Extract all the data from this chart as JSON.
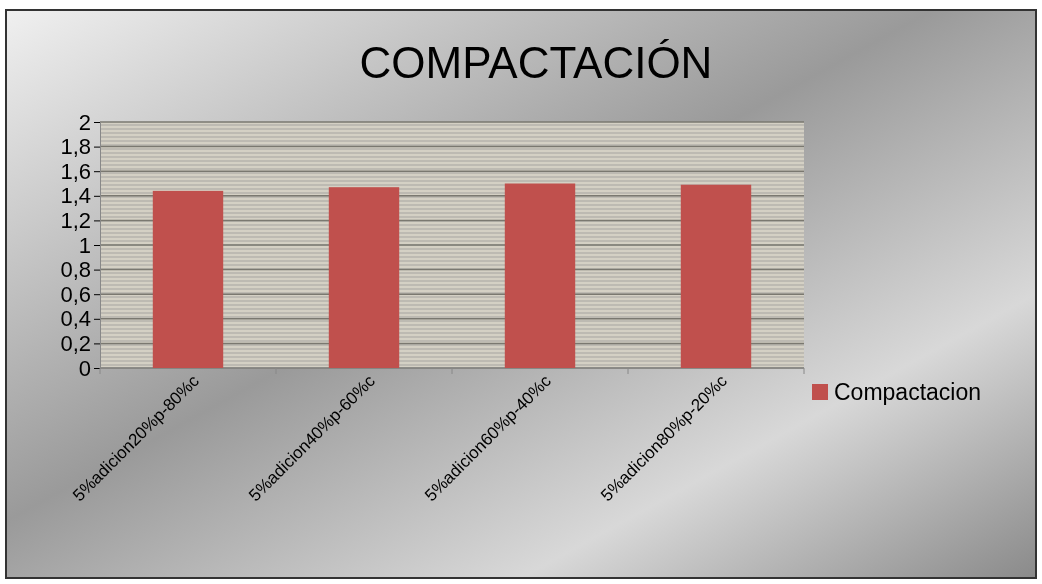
{
  "chart_data": {
    "type": "bar",
    "title": "COMPACTACIÓN",
    "categories": [
      "5%adicion20%p-80%c",
      "5%adicion40%p-60%c",
      "5%adicion60%p-40%c",
      "5%adicion80%p-20%c"
    ],
    "series": [
      {
        "name": "Compactacion",
        "color": "#c0504d",
        "values": [
          1.44,
          1.47,
          1.5,
          1.49
        ]
      }
    ],
    "ylim": [
      0,
      2
    ],
    "yticks": [
      0,
      {
        "value": 0.2,
        "label": "0,2"
      },
      {
        "value": 0.4,
        "label": "0,4"
      },
      {
        "value": 0.6,
        "label": "0,6"
      },
      {
        "value": 0.8,
        "label": "0,8"
      },
      1,
      {
        "value": 1.2,
        "label": "1,2"
      },
      {
        "value": 1.4,
        "label": "1,4"
      },
      {
        "value": 1.6,
        "label": "1,6"
      },
      {
        "value": 1.8,
        "label": "1,8"
      },
      2
    ],
    "grid": "y",
    "legend": "right"
  }
}
